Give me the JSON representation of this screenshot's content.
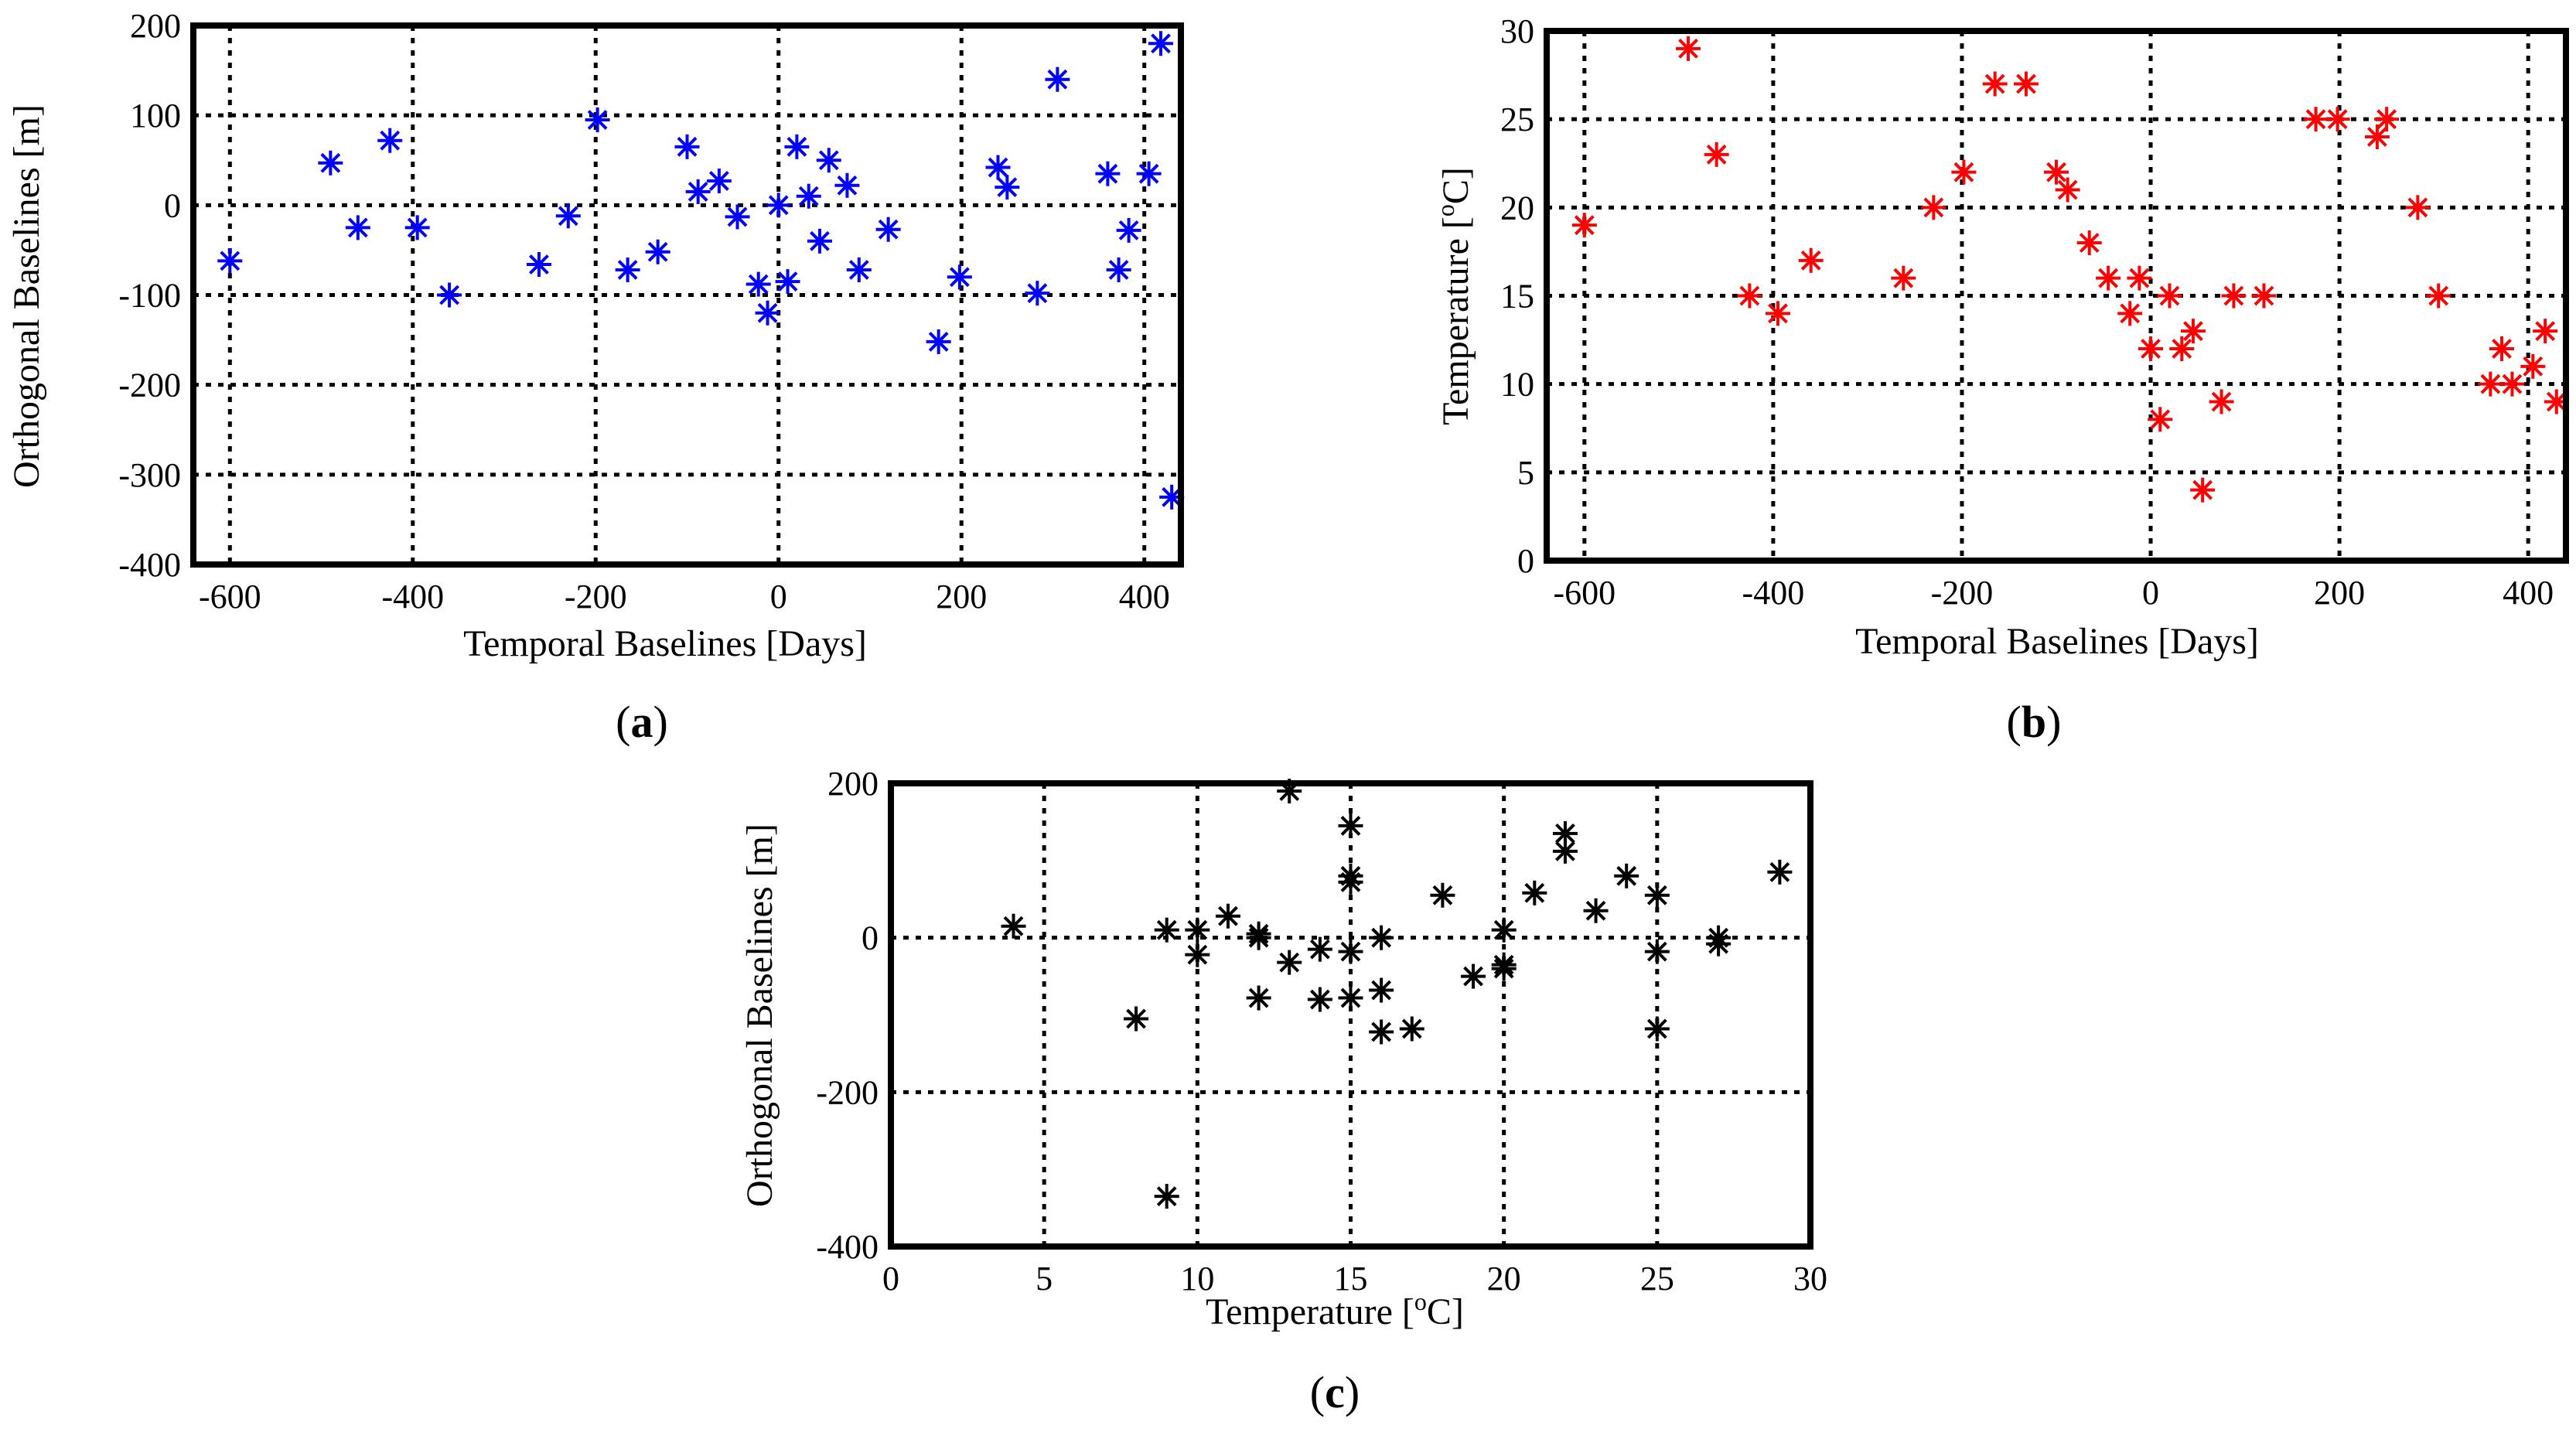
{
  "chart_data": [
    {
      "id": "a",
      "type": "scatter",
      "panel_label": "a",
      "xlabel": "Temporal Baselines [Days]",
      "ylabel": "Orthogonal Baselines [m]",
      "xlim": [
        -640,
        440
      ],
      "ylim": [
        -400,
        200
      ],
      "xticks": [
        -600,
        -400,
        -200,
        0,
        200,
        400
      ],
      "yticks": [
        -400,
        -300,
        -200,
        -100,
        0,
        100,
        200
      ],
      "marker_color": "#0000ff",
      "grid": true,
      "points": [
        [
          -600,
          -62
        ],
        [
          -490,
          47
        ],
        [
          -460,
          -25
        ],
        [
          -425,
          72
        ],
        [
          -395,
          -25
        ],
        [
          -360,
          -100
        ],
        [
          -262,
          -66
        ],
        [
          -230,
          -12
        ],
        [
          -198,
          95
        ],
        [
          -165,
          -72
        ],
        [
          -132,
          -52
        ],
        [
          -100,
          65
        ],
        [
          -88,
          15
        ],
        [
          -65,
          27
        ],
        [
          -45,
          -13
        ],
        [
          -22,
          -88
        ],
        [
          -12,
          -120
        ],
        [
          0,
          0
        ],
        [
          10,
          -85
        ],
        [
          20,
          65
        ],
        [
          33,
          10
        ],
        [
          45,
          -40
        ],
        [
          55,
          50
        ],
        [
          75,
          22
        ],
        [
          88,
          -72
        ],
        [
          120,
          -27
        ],
        [
          175,
          -152
        ],
        [
          198,
          -80
        ],
        [
          240,
          42
        ],
        [
          250,
          20
        ],
        [
          283,
          -98
        ],
        [
          305,
          140
        ],
        [
          360,
          35
        ],
        [
          372,
          -72
        ],
        [
          383,
          -28
        ],
        [
          405,
          35
        ],
        [
          418,
          180
        ],
        [
          430,
          -325
        ]
      ]
    },
    {
      "id": "b",
      "type": "scatter",
      "panel_label": "b",
      "xlabel": "Temporal Baselines [Days]",
      "ylabel": "Temperature [",
      "ylabel_sup": "o",
      "ylabel_end": "C]",
      "xlim": [
        -640,
        440
      ],
      "ylim": [
        0,
        30
      ],
      "xticks": [
        -600,
        -400,
        -200,
        0,
        200,
        400
      ],
      "yticks": [
        0,
        5,
        10,
        15,
        20,
        25,
        30
      ],
      "marker_color": "#ff0000",
      "grid": true,
      "points": [
        [
          -600,
          19
        ],
        [
          -490,
          29
        ],
        [
          -460,
          23
        ],
        [
          -425,
          15
        ],
        [
          -395,
          14
        ],
        [
          -360,
          17
        ],
        [
          -262,
          16
        ],
        [
          -230,
          20
        ],
        [
          -198,
          22
        ],
        [
          -165,
          27
        ],
        [
          -132,
          27
        ],
        [
          -100,
          22
        ],
        [
          -88,
          21
        ],
        [
          -65,
          18
        ],
        [
          -45,
          16
        ],
        [
          -22,
          14
        ],
        [
          -12,
          16
        ],
        [
          0,
          12
        ],
        [
          10,
          8
        ],
        [
          20,
          15
        ],
        [
          33,
          12
        ],
        [
          45,
          13
        ],
        [
          55,
          4
        ],
        [
          75,
          9
        ],
        [
          88,
          15
        ],
        [
          120,
          15
        ],
        [
          175,
          25
        ],
        [
          198,
          25
        ],
        [
          240,
          24
        ],
        [
          250,
          25
        ],
        [
          283,
          20
        ],
        [
          305,
          15
        ],
        [
          360,
          10
        ],
        [
          372,
          12
        ],
        [
          383,
          10
        ],
        [
          405,
          11
        ],
        [
          418,
          13
        ],
        [
          430,
          9
        ]
      ]
    },
    {
      "id": "c",
      "type": "scatter",
      "panel_label": "c",
      "xlabel": "Temperature [",
      "xlabel_sup": "o",
      "xlabel_end": "C]",
      "ylabel": "Orthogonal Baselines [m]",
      "xlim": [
        0,
        30
      ],
      "ylim": [
        -400,
        200
      ],
      "xticks": [
        0,
        5,
        10,
        15,
        20,
        25,
        30
      ],
      "yticks": [
        -400,
        -200,
        0,
        200
      ],
      "marker_color": "#000000",
      "grid": true,
      "points": [
        [
          4,
          15
        ],
        [
          8,
          -105
        ],
        [
          9,
          10
        ],
        [
          9,
          -335
        ],
        [
          10,
          10
        ],
        [
          10,
          -22
        ],
        [
          11,
          28
        ],
        [
          12,
          5
        ],
        [
          12,
          0
        ],
        [
          12,
          -78
        ],
        [
          13,
          190
        ],
        [
          13,
          -32
        ],
        [
          14,
          -15
        ],
        [
          14,
          -80
        ],
        [
          15,
          145
        ],
        [
          15,
          80
        ],
        [
          15,
          72
        ],
        [
          15,
          -18
        ],
        [
          15,
          -78
        ],
        [
          16,
          0
        ],
        [
          16,
          -68
        ],
        [
          16,
          -122
        ],
        [
          17,
          -118
        ],
        [
          18,
          55
        ],
        [
          19,
          -50
        ],
        [
          20,
          10
        ],
        [
          20,
          -35
        ],
        [
          20,
          -40
        ],
        [
          21,
          58
        ],
        [
          22,
          135
        ],
        [
          22,
          112
        ],
        [
          23,
          35
        ],
        [
          24,
          80
        ],
        [
          25,
          55
        ],
        [
          25,
          -18
        ],
        [
          25,
          -118
        ],
        [
          27,
          0
        ],
        [
          27,
          -8
        ],
        [
          29,
          85
        ]
      ]
    }
  ]
}
